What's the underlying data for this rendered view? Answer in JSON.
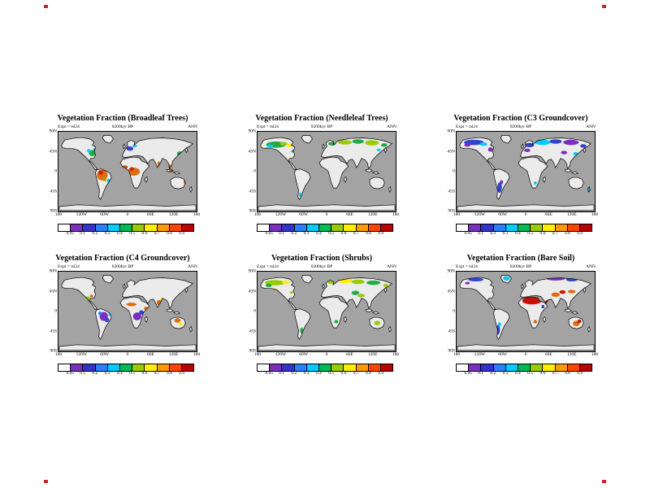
{
  "page": {
    "background": "#ffffff"
  },
  "marks": {
    "color": "#cc2222"
  },
  "axes": {
    "lat": [
      "90N",
      "45N",
      "0",
      "45S",
      "90S"
    ],
    "lon": [
      "180",
      "120W",
      "60W",
      "0",
      "60E",
      "120E",
      "180"
    ]
  },
  "colorbar": {
    "ticks": [
      "0.05",
      "0.1",
      "0.2",
      "0.3",
      "0.4",
      "0.5",
      "0.6",
      "0.7",
      "0.8",
      "0.9"
    ],
    "colors": [
      "#ffffff",
      "#7b2fbe",
      "#3333cc",
      "#2a7fff",
      "#00ccff",
      "#00bb55",
      "#99cc00",
      "#ffee00",
      "#ff9900",
      "#ff4400",
      "#bb0000"
    ]
  },
  "map_colors": {
    "ocean": "#a3a3a3",
    "land": "#ebebeb",
    "coast": "#000000"
  },
  "panels": [
    {
      "title": "Vegetation Fraction (Broadleaf Trees)",
      "subtitle": "0200kyr BP",
      "expt": "Expt = tsl24",
      "season": "ANN",
      "regions": [
        [
          114,
          98,
          14,
          12,
          "#e06a10"
        ],
        [
          110,
          92,
          6,
          5,
          "#cc2200"
        ],
        [
          120,
          106,
          5,
          6,
          "#cc8800"
        ],
        [
          196,
          90,
          16,
          9,
          "#e06a10"
        ],
        [
          191,
          84,
          6,
          4,
          "#cc2200"
        ],
        [
          173,
          80,
          8,
          4,
          "#cc5500"
        ],
        [
          290,
          80,
          10,
          6,
          "#e06a10"
        ],
        [
          297,
          89,
          9,
          4,
          "#cc5500"
        ],
        [
          262,
          73,
          4,
          6,
          "#e06a10"
        ],
        [
          88,
          48,
          9,
          7,
          "#22aa44"
        ],
        [
          79,
          43,
          5,
          4,
          "#00ccff"
        ],
        [
          95,
          40,
          4,
          3,
          "#2a7fff"
        ],
        [
          186,
          38,
          9,
          5,
          "#3344cc"
        ],
        [
          199,
          32,
          6,
          3,
          "#00ccff"
        ],
        [
          316,
          50,
          7,
          6,
          "#22aa44"
        ],
        [
          323,
          58,
          4,
          3,
          "#00ccff"
        ],
        [
          130,
          111,
          4,
          5,
          "#00ccff"
        ],
        [
          329,
          113,
          3,
          5,
          "#e06a10"
        ]
      ]
    },
    {
      "title": "Vegetation Fraction (Needleleaf Trees)",
      "subtitle": "0200kyr BP",
      "expt": "Expt = tsl24",
      "season": "ANN",
      "regions": [
        [
          48,
          29,
          26,
          7,
          "#22aa44"
        ],
        [
          33,
          33,
          8,
          4,
          "#00ccff"
        ],
        [
          68,
          27,
          10,
          4,
          "#99cc00"
        ],
        [
          84,
          31,
          7,
          4,
          "#ffee00"
        ],
        [
          24,
          40,
          4,
          5,
          "#00ccff"
        ],
        [
          194,
          27,
          10,
          4,
          "#22aa44"
        ],
        [
          228,
          24,
          18,
          5,
          "#99cc00"
        ],
        [
          262,
          22,
          15,
          5,
          "#22aa44"
        ],
        [
          298,
          25,
          18,
          6,
          "#99cc00"
        ],
        [
          330,
          30,
          8,
          4,
          "#22aa44"
        ],
        [
          316,
          41,
          5,
          3,
          "#00ccff"
        ],
        [
          92,
          44,
          4,
          3,
          "#22aa44"
        ],
        [
          111,
          142,
          3,
          5,
          "#00ccff"
        ]
      ]
    },
    {
      "title": "Vegetation Fraction (C3 Groundcover)",
      "subtitle": "0200kyr BP",
      "expt": "Expt = tsl24",
      "season": "ANN",
      "regions": [
        [
          45,
          24,
          26,
          6,
          "#3344cc"
        ],
        [
          28,
          30,
          8,
          4,
          "#7b2fbe"
        ],
        [
          70,
          28,
          10,
          4,
          "#00ccff"
        ],
        [
          88,
          40,
          6,
          5,
          "#7b2fbe"
        ],
        [
          190,
          30,
          12,
          5,
          "#3344cc"
        ],
        [
          184,
          42,
          8,
          4,
          "#7b2fbe"
        ],
        [
          224,
          24,
          20,
          6,
          "#00ccff"
        ],
        [
          258,
          22,
          16,
          5,
          "#3344cc"
        ],
        [
          298,
          24,
          20,
          6,
          "#7b2fbe"
        ],
        [
          330,
          32,
          8,
          4,
          "#3344cc"
        ],
        [
          280,
          47,
          8,
          4,
          "#7b2fbe"
        ],
        [
          310,
          50,
          6,
          4,
          "#00ccff"
        ],
        [
          112,
          126,
          6,
          12,
          "#3344cc"
        ],
        [
          117,
          114,
          4,
          5,
          "#7b2fbe"
        ],
        [
          205,
          116,
          4,
          4,
          "#00ccff"
        ],
        [
          345,
          130,
          3,
          5,
          "#00ccff"
        ]
      ]
    },
    {
      "title": "Vegetation Fraction (C4 Groundcover)",
      "subtitle": "0200kyr BP",
      "expt": "Expt = tsl24",
      "season": "ANN",
      "regions": [
        [
          118,
          101,
          11,
          10,
          "#7b2fbe"
        ],
        [
          126,
          109,
          6,
          5,
          "#3344cc"
        ],
        [
          108,
          94,
          4,
          4,
          "#2a7fff"
        ],
        [
          190,
          74,
          13,
          4,
          "#e06a10"
        ],
        [
          205,
          101,
          11,
          9,
          "#7b2fbe"
        ],
        [
          216,
          92,
          6,
          5,
          "#3344cc"
        ],
        [
          228,
          83,
          5,
          4,
          "#e06a10"
        ],
        [
          262,
          70,
          6,
          6,
          "#e06a10"
        ],
        [
          269,
          63,
          4,
          3,
          "#ffee00"
        ],
        [
          310,
          110,
          8,
          5,
          "#e06a10"
        ],
        [
          318,
          118,
          5,
          4,
          "#ffee00"
        ],
        [
          76,
          60,
          6,
          4,
          "#99cc00"
        ],
        [
          86,
          55,
          4,
          3,
          "#e06a10"
        ],
        [
          135,
          96,
          5,
          4,
          "#00ccff"
        ]
      ]
    },
    {
      "title": "Vegetation Fraction (Shrubs)",
      "subtitle": "0200kyr BP",
      "expt": "Expt = tsl24",
      "season": "ANN",
      "regions": [
        [
          45,
          25,
          26,
          6,
          "#99cc00"
        ],
        [
          29,
          31,
          8,
          4,
          "#22aa44"
        ],
        [
          74,
          24,
          10,
          4,
          "#ffee00"
        ],
        [
          194,
          24,
          12,
          4,
          "#99cc00"
        ],
        [
          228,
          21,
          20,
          5,
          "#ffee00"
        ],
        [
          262,
          23,
          17,
          5,
          "#99cc00"
        ],
        [
          302,
          25,
          18,
          5,
          "#22aa44"
        ],
        [
          334,
          31,
          6,
          4,
          "#99cc00"
        ],
        [
          255,
          48,
          10,
          5,
          "#22aa44"
        ],
        [
          270,
          54,
          9,
          4,
          "#99cc00"
        ],
        [
          36,
          47,
          6,
          6,
          "#22aa44"
        ],
        [
          46,
          41,
          4,
          4,
          "#ffee00"
        ],
        [
          205,
          113,
          5,
          4,
          "#22aa44"
        ],
        [
          312,
          116,
          8,
          5,
          "#99cc00"
        ],
        [
          115,
          133,
          4,
          7,
          "#22aa44"
        ],
        [
          88,
          47,
          4,
          3,
          "#99cc00"
        ]
      ]
    },
    {
      "title": "Vegetation Fraction (Bare Soil)",
      "subtitle": "0200kyr BP",
      "expt": "Expt = tsl24",
      "season": "ANN",
      "regions": [
        [
          196,
          66,
          25,
          8,
          "#cc1100"
        ],
        [
          240,
          69,
          9,
          6,
          "#cc1100"
        ],
        [
          258,
          52,
          11,
          5,
          "#e06a10"
        ],
        [
          276,
          46,
          8,
          4,
          "#cc1100"
        ],
        [
          300,
          45,
          10,
          4,
          "#e06a10"
        ],
        [
          312,
          117,
          9,
          6,
          "#e06a10"
        ],
        [
          320,
          112,
          5,
          4,
          "#cc1100"
        ],
        [
          50,
          18,
          20,
          4,
          "#3344cc"
        ],
        [
          28,
          26,
          6,
          3,
          "#7b2fbe"
        ],
        [
          258,
          16,
          24,
          4,
          "#7b2fbe"
        ],
        [
          300,
          18,
          15,
          4,
          "#3344cc"
        ],
        [
          130,
          15,
          9,
          5,
          "#00ccff"
        ],
        [
          108,
          131,
          5,
          11,
          "#3344cc"
        ],
        [
          112,
          119,
          4,
          5,
          "#00ccff"
        ],
        [
          205,
          113,
          5,
          4,
          "#e06a10"
        ],
        [
          40,
          52,
          5,
          4,
          "#e06a10"
        ],
        [
          225,
          79,
          4,
          4,
          "#3344cc"
        ]
      ]
    }
  ]
}
